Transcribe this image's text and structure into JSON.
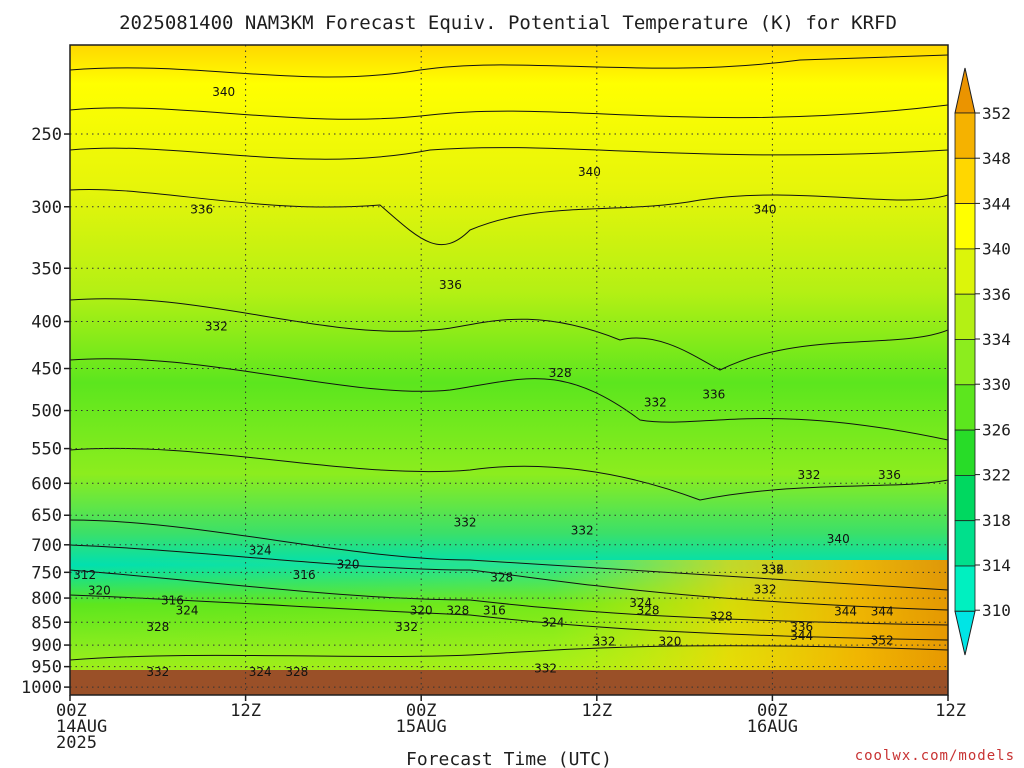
{
  "chart_data": {
    "type": "heatmap",
    "title": "2025081400 NAM3KM Forecast Equiv. Potential Temperature (K) for KRFD",
    "xlabel": "Forecast Time (UTC)",
    "ylabel": "",
    "credit": "coolwx.com/models",
    "y_scale": "log-pressure",
    "y_range": [
      1020,
      200
    ],
    "x_range_hours": [
      0,
      60
    ],
    "grid": true,
    "colorbar_position": "right",
    "x_ticks": [
      {
        "hour": 0,
        "line1": "00Z",
        "line2": "14AUG",
        "line3": "2025"
      },
      {
        "hour": 12,
        "line1": "12Z",
        "line2": "",
        "line3": ""
      },
      {
        "hour": 24,
        "line1": "00Z",
        "line2": "15AUG",
        "line3": ""
      },
      {
        "hour": 36,
        "line1": "12Z",
        "line2": "",
        "line3": ""
      },
      {
        "hour": 48,
        "line1": "00Z",
        "line2": "16AUG",
        "line3": ""
      },
      {
        "hour": 60,
        "line1": "12Z",
        "line2": "",
        "line3": ""
      }
    ],
    "y_ticks": [
      250,
      300,
      350,
      400,
      450,
      500,
      550,
      600,
      650,
      700,
      750,
      800,
      850,
      900,
      950,
      1000
    ],
    "colorbar": {
      "levels": [
        310,
        314,
        318,
        322,
        326,
        330,
        334,
        336,
        340,
        344,
        348,
        352
      ],
      "colors": [
        "#00e5e5",
        "#00f0c0",
        "#00e08c",
        "#00d860",
        "#28dc28",
        "#5ce61e",
        "#8ced1e",
        "#b4f014",
        "#dcf50a",
        "#ffff00",
        "#ffd700",
        "#f5b200",
        "#eb9400"
      ]
    },
    "ground_level_hpa": 975,
    "ground_color": "#9a5028",
    "field_fill": [
      {
        "x": 0,
        "y": 880,
        "v": 328
      },
      {
        "x": 6,
        "y": 880,
        "v": 329
      },
      {
        "x": 18,
        "y": 880,
        "v": 330
      },
      {
        "x": 30,
        "y": 880,
        "v": 332
      },
      {
        "x": 42,
        "y": 880,
        "v": 336
      },
      {
        "x": 54,
        "y": 880,
        "v": 346
      },
      {
        "x": 60,
        "y": 880,
        "v": 348
      }
    ],
    "contour_labels": [
      {
        "text": "340",
        "hour": 10.5,
        "p": 225
      },
      {
        "text": "340",
        "hour": 35.5,
        "p": 275
      },
      {
        "text": "340",
        "hour": 47.5,
        "p": 302
      },
      {
        "text": "336",
        "hour": 9.0,
        "p": 302
      },
      {
        "text": "336",
        "hour": 26.0,
        "p": 365
      },
      {
        "text": "336",
        "hour": 44.0,
        "p": 480
      },
      {
        "text": "336",
        "hour": 56.0,
        "p": 588
      },
      {
        "text": "332",
        "hour": 10.0,
        "p": 405
      },
      {
        "text": "332",
        "hour": 40.0,
        "p": 490
      },
      {
        "text": "332",
        "hour": 50.5,
        "p": 588
      },
      {
        "text": "332",
        "hour": 27.0,
        "p": 662
      },
      {
        "text": "332",
        "hour": 35.0,
        "p": 675
      },
      {
        "text": "332",
        "hour": 47.5,
        "p": 783
      },
      {
        "text": "332",
        "hour": 23.0,
        "p": 860
      },
      {
        "text": "332",
        "hour": 36.5,
        "p": 892
      },
      {
        "text": "332",
        "hour": 6.0,
        "p": 963
      },
      {
        "text": "332",
        "hour": 32.5,
        "p": 955
      },
      {
        "text": "328",
        "hour": 33.5,
        "p": 455
      },
      {
        "text": "328",
        "hour": 29.5,
        "p": 760
      },
      {
        "text": "328",
        "hour": 26.5,
        "p": 825
      },
      {
        "text": "328",
        "hour": 39.5,
        "p": 825
      },
      {
        "text": "328",
        "hour": 44.5,
        "p": 838
      },
      {
        "text": "328",
        "hour": 6.0,
        "p": 860
      },
      {
        "text": "328",
        "hour": 15.5,
        "p": 963
      },
      {
        "text": "324",
        "hour": 13.0,
        "p": 710
      },
      {
        "text": "324",
        "hour": 8.0,
        "p": 825
      },
      {
        "text": "324",
        "hour": 39.0,
        "p": 810
      },
      {
        "text": "324",
        "hour": 33.0,
        "p": 850
      },
      {
        "text": "324",
        "hour": 13.0,
        "p": 963
      },
      {
        "text": "320",
        "hour": 19.0,
        "p": 735
      },
      {
        "text": "320",
        "hour": 2.0,
        "p": 785
      },
      {
        "text": "320",
        "hour": 24.0,
        "p": 825
      },
      {
        "text": "320",
        "hour": 41.0,
        "p": 892
      },
      {
        "text": "316",
        "hour": 16.0,
        "p": 755
      },
      {
        "text": "316",
        "hour": 7.0,
        "p": 805
      },
      {
        "text": "316",
        "hour": 29.0,
        "p": 825
      },
      {
        "text": "312",
        "hour": 1.0,
        "p": 755
      },
      {
        "text": "340",
        "hour": 52.5,
        "p": 690
      },
      {
        "text": "344",
        "hour": 53.0,
        "p": 827
      },
      {
        "text": "344",
        "hour": 55.5,
        "p": 827
      },
      {
        "text": "344",
        "hour": 50.0,
        "p": 880
      },
      {
        "text": "336",
        "hour": 50.0,
        "p": 860
      },
      {
        "text": "352",
        "hour": 55.5,
        "p": 890
      },
      {
        "text": "332",
        "hour": 48.0,
        "p": 745
      },
      {
        "text": "336",
        "hour": 48.0,
        "p": 745
      }
    ]
  }
}
